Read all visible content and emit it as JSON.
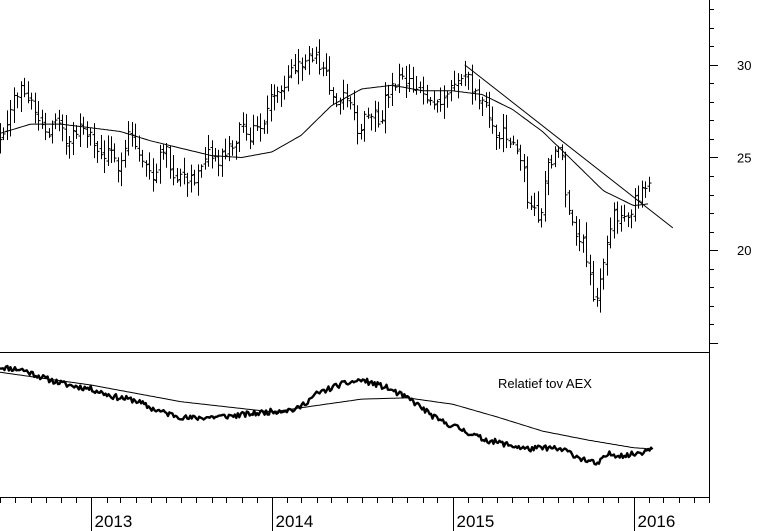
{
  "chart_data": [
    {
      "type": "ohlc",
      "panel": "price",
      "y_axis_side": "right",
      "ylim": [
        14.5,
        33.5
      ],
      "y_ticks": [
        20,
        25,
        30
      ],
      "y_tick_labels": [
        "20",
        "25",
        "30"
      ],
      "x_range": [
        "2012-07-01",
        "2016-06-01"
      ],
      "x_ticks": [
        "2013-01-01",
        "2014-01-01",
        "2015-01-01",
        "2016-01-01"
      ],
      "x_tick_labels": [
        "2013",
        "2014",
        "2015",
        "2016"
      ],
      "price_path": [
        [
          "2012-07-01",
          26.2
        ],
        [
          "2012-08-01",
          28.3
        ],
        [
          "2012-08-20",
          28.8
        ],
        [
          "2012-09-15",
          27.2
        ],
        [
          "2012-10-05",
          26.4
        ],
        [
          "2012-10-25",
          26.9
        ],
        [
          "2012-11-10",
          26.0
        ],
        [
          "2012-12-01",
          26.3
        ],
        [
          "2012-12-20",
          26.7
        ],
        [
          "2013-01-10",
          25.3
        ],
        [
          "2013-02-01",
          25.1
        ],
        [
          "2013-02-25",
          24.7
        ],
        [
          "2013-03-20",
          26.6
        ],
        [
          "2013-04-10",
          24.8
        ],
        [
          "2013-05-05",
          24.0
        ],
        [
          "2013-05-25",
          25.8
        ],
        [
          "2013-06-15",
          24.2
        ],
        [
          "2013-07-10",
          24.0
        ],
        [
          "2013-08-05",
          23.9
        ],
        [
          "2013-08-25",
          25.0
        ],
        [
          "2013-09-15",
          24.8
        ],
        [
          "2013-10-10",
          25.5
        ],
        [
          "2013-10-30",
          26.5
        ],
        [
          "2013-11-20",
          26.3
        ],
        [
          "2013-12-15",
          27.0
        ],
        [
          "2014-01-10",
          28.8
        ],
        [
          "2014-01-30",
          29.3
        ],
        [
          "2014-02-20",
          30.2
        ],
        [
          "2014-03-15",
          30.5
        ],
        [
          "2014-04-05",
          30.1
        ],
        [
          "2014-04-20",
          29.6
        ],
        [
          "2014-05-10",
          27.5
        ],
        [
          "2014-06-01",
          28.4
        ],
        [
          "2014-06-25",
          26.4
        ],
        [
          "2014-07-15",
          27.8
        ],
        [
          "2014-08-05",
          27.0
        ],
        [
          "2014-08-25",
          28.5
        ],
        [
          "2014-09-15",
          29.1
        ],
        [
          "2014-10-10",
          28.8
        ],
        [
          "2014-11-01",
          28.3
        ],
        [
          "2014-11-25",
          28.0
        ],
        [
          "2014-12-15",
          28.4
        ],
        [
          "2015-01-05",
          28.9
        ],
        [
          "2015-01-25",
          29.4
        ],
        [
          "2015-02-10",
          28.7
        ],
        [
          "2015-03-05",
          27.7
        ],
        [
          "2015-03-25",
          26.5
        ],
        [
          "2015-04-20",
          26.0
        ],
        [
          "2015-05-15",
          25.3
        ],
        [
          "2015-06-05",
          22.3
        ],
        [
          "2015-06-25",
          21.8
        ],
        [
          "2015-07-15",
          24.9
        ],
        [
          "2015-08-05",
          25.6
        ],
        [
          "2015-08-25",
          21.6
        ],
        [
          "2015-09-20",
          20.6
        ],
        [
          "2015-10-15",
          17.2
        ],
        [
          "2015-11-01",
          19.0
        ],
        [
          "2015-11-20",
          21.7
        ],
        [
          "2015-12-10",
          21.9
        ],
        [
          "2015-12-30",
          22.4
        ],
        [
          "2016-01-20",
          23.1
        ],
        [
          "2016-02-05",
          23.3
        ]
      ],
      "price_seed": 7,
      "moving_average": [
        [
          "2012-07-01",
          26.3
        ],
        [
          "2012-09-01",
          26.8
        ],
        [
          "2012-11-01",
          26.8
        ],
        [
          "2013-01-01",
          26.6
        ],
        [
          "2013-03-01",
          26.4
        ],
        [
          "2013-05-01",
          25.9
        ],
        [
          "2013-07-01",
          25.5
        ],
        [
          "2013-09-01",
          25.1
        ],
        [
          "2013-11-01",
          25.0
        ],
        [
          "2014-01-01",
          25.3
        ],
        [
          "2014-03-01",
          26.2
        ],
        [
          "2014-05-01",
          27.8
        ],
        [
          "2014-07-01",
          28.7
        ],
        [
          "2014-09-01",
          28.9
        ],
        [
          "2014-11-01",
          28.6
        ],
        [
          "2015-01-01",
          28.6
        ],
        [
          "2015-03-01",
          28.4
        ],
        [
          "2015-05-01",
          27.6
        ],
        [
          "2015-07-01",
          26.4
        ],
        [
          "2015-09-01",
          24.8
        ],
        [
          "2015-11-01",
          23.2
        ],
        [
          "2016-01-01",
          22.4
        ],
        [
          "2016-02-01",
          22.5
        ]
      ],
      "trendline": [
        [
          "2015-01-25",
          30.0
        ],
        [
          "2016-03-20",
          21.2
        ]
      ]
    },
    {
      "type": "line",
      "panel": "relative",
      "annotation": "Relatief tov AEX",
      "ylim": [
        0.0,
        1.0
      ],
      "x_range": [
        "2012-07-01",
        "2016-06-01"
      ],
      "ratio_path": [
        [
          "2012-07-01",
          0.96
        ],
        [
          "2012-08-15",
          0.94
        ],
        [
          "2012-10-01",
          0.87
        ],
        [
          "2012-11-15",
          0.82
        ],
        [
          "2013-01-01",
          0.79
        ],
        [
          "2013-02-15",
          0.73
        ],
        [
          "2013-04-01",
          0.7
        ],
        [
          "2013-05-01",
          0.64
        ],
        [
          "2013-06-01",
          0.6
        ],
        [
          "2013-07-15",
          0.56
        ],
        [
          "2013-09-01",
          0.57
        ],
        [
          "2013-10-15",
          0.58
        ],
        [
          "2013-12-01",
          0.6
        ],
        [
          "2014-01-15",
          0.62
        ],
        [
          "2014-02-20",
          0.63
        ],
        [
          "2014-04-01",
          0.75
        ],
        [
          "2014-05-15",
          0.82
        ],
        [
          "2014-07-01",
          0.86
        ],
        [
          "2014-08-20",
          0.8
        ],
        [
          "2014-10-10",
          0.7
        ],
        [
          "2014-12-01",
          0.55
        ],
        [
          "2015-01-15",
          0.48
        ],
        [
          "2015-03-01",
          0.4
        ],
        [
          "2015-04-15",
          0.36
        ],
        [
          "2015-06-01",
          0.32
        ],
        [
          "2015-07-10",
          0.33
        ],
        [
          "2015-08-15",
          0.31
        ],
        [
          "2015-09-15",
          0.25
        ],
        [
          "2015-10-20",
          0.2
        ],
        [
          "2015-11-10",
          0.28
        ],
        [
          "2015-12-20",
          0.27
        ],
        [
          "2016-01-20",
          0.3
        ],
        [
          "2016-02-10",
          0.34
        ]
      ],
      "ratio_seed": 11,
      "moving_average": [
        [
          "2012-07-01",
          0.92
        ],
        [
          "2013-01-01",
          0.82
        ],
        [
          "2013-07-01",
          0.69
        ],
        [
          "2014-01-01",
          0.61
        ],
        [
          "2014-04-01",
          0.66
        ],
        [
          "2014-07-01",
          0.71
        ],
        [
          "2014-10-01",
          0.72
        ],
        [
          "2015-01-01",
          0.67
        ],
        [
          "2015-04-01",
          0.57
        ],
        [
          "2015-07-01",
          0.46
        ],
        [
          "2015-10-01",
          0.39
        ],
        [
          "2016-01-01",
          0.33
        ],
        [
          "2016-02-10",
          0.32
        ]
      ]
    }
  ]
}
